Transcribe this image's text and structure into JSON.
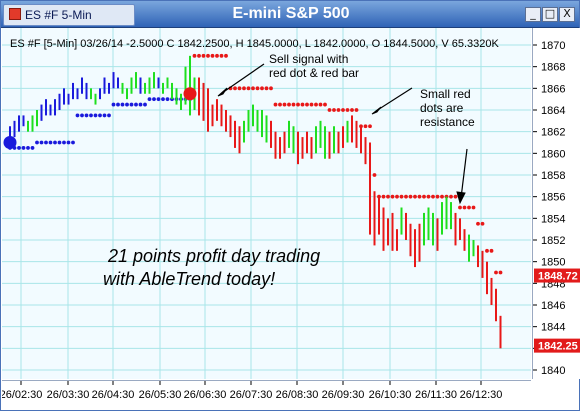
{
  "window": {
    "tab_label": "ES #F 5-Min",
    "title": "E-mini S&P 500",
    "buttons": [
      "_",
      "□",
      "X"
    ]
  },
  "info_line": "ES #F [5-Min] 03/26/14  -2.5000 C 1842.2500, H 1845.0000, L 1842.0000, O 1844.5000, V 65.3320K",
  "annotations": {
    "sell_signal": [
      "Sell signal with",
      "red dot & red bar"
    ],
    "resistance": [
      "Small red",
      "dots are",
      "resistance"
    ],
    "profit": [
      "21 points profit day trading",
      "with AbleTrend today!"
    ]
  },
  "price_tags": {
    "upper": "1848.72",
    "last": "1842.25"
  },
  "colors": {
    "up": "#1fdf1f",
    "down": "#e81818",
    "neutral": "#1a1adc",
    "stop_dot": "#e81818",
    "support_dot": "#1a1adc",
    "grid": "#a8e6e8"
  },
  "chart_data": {
    "type": "bar",
    "subtype": "OHLC price bars with AbleTrend stop dots",
    "ylim": [
      1840,
      1871
    ],
    "y_ticks": [
      1840,
      1842,
      1844,
      1846,
      1848,
      1850,
      1852,
      1854,
      1856,
      1858,
      1860,
      1862,
      1864,
      1866,
      1868,
      1870
    ],
    "x_ticks": [
      "26/02:30",
      "26/03:30",
      "26/04:30",
      "26/05:30",
      "26/06:30",
      "26/07:30",
      "26/08:30",
      "26/09:30",
      "26/10:30",
      "26/11:30",
      "26/12:30"
    ],
    "grid": true,
    "bars": [
      {
        "h": 1862.5,
        "l": 1861.0,
        "c": "neutral"
      },
      {
        "h": 1863.0,
        "l": 1861.5,
        "c": "neutral"
      },
      {
        "h": 1863.5,
        "l": 1862.0,
        "c": "neutral"
      },
      {
        "h": 1863.5,
        "l": 1862.5,
        "c": "neutral"
      },
      {
        "h": 1863.0,
        "l": 1862.0,
        "c": "up"
      },
      {
        "h": 1863.5,
        "l": 1862.0,
        "c": "up"
      },
      {
        "h": 1864.0,
        "l": 1862.5,
        "c": "up"
      },
      {
        "h": 1864.5,
        "l": 1863.0,
        "c": "neutral"
      },
      {
        "h": 1865.0,
        "l": 1863.5,
        "c": "neutral"
      },
      {
        "h": 1864.5,
        "l": 1863.5,
        "c": "neutral"
      },
      {
        "h": 1865.0,
        "l": 1863.5,
        "c": "neutral"
      },
      {
        "h": 1865.5,
        "l": 1864.0,
        "c": "neutral"
      },
      {
        "h": 1866.0,
        "l": 1864.5,
        "c": "neutral"
      },
      {
        "h": 1865.5,
        "l": 1864.5,
        "c": "neutral"
      },
      {
        "h": 1866.5,
        "l": 1865.0,
        "c": "neutral"
      },
      {
        "h": 1866.0,
        "l": 1865.0,
        "c": "neutral"
      },
      {
        "h": 1867.0,
        "l": 1865.5,
        "c": "neutral"
      },
      {
        "h": 1866.5,
        "l": 1865.0,
        "c": "neutral"
      },
      {
        "h": 1866.0,
        "l": 1865.0,
        "c": "up"
      },
      {
        "h": 1865.5,
        "l": 1864.5,
        "c": "up"
      },
      {
        "h": 1866.0,
        "l": 1865.0,
        "c": "neutral"
      },
      {
        "h": 1867.0,
        "l": 1865.5,
        "c": "neutral"
      },
      {
        "h": 1866.5,
        "l": 1865.5,
        "c": "neutral"
      },
      {
        "h": 1867.5,
        "l": 1866.0,
        "c": "neutral"
      },
      {
        "h": 1867.0,
        "l": 1866.0,
        "c": "neutral"
      },
      {
        "h": 1866.5,
        "l": 1865.5,
        "c": "up"
      },
      {
        "h": 1866.0,
        "l": 1865.0,
        "c": "up"
      },
      {
        "h": 1867.0,
        "l": 1865.5,
        "c": "up"
      },
      {
        "h": 1867.5,
        "l": 1866.0,
        "c": "up"
      },
      {
        "h": 1867.0,
        "l": 1865.5,
        "c": "neutral"
      },
      {
        "h": 1866.5,
        "l": 1865.5,
        "c": "up"
      },
      {
        "h": 1867.0,
        "l": 1865.5,
        "c": "up"
      },
      {
        "h": 1867.5,
        "l": 1866.0,
        "c": "up"
      },
      {
        "h": 1867.0,
        "l": 1866.0,
        "c": "neutral"
      },
      {
        "h": 1866.5,
        "l": 1865.5,
        "c": "up"
      },
      {
        "h": 1867.0,
        "l": 1866.0,
        "c": "up"
      },
      {
        "h": 1866.5,
        "l": 1865.0,
        "c": "up"
      },
      {
        "h": 1866.0,
        "l": 1864.5,
        "c": "up"
      },
      {
        "h": 1865.5,
        "l": 1864.0,
        "c": "up"
      },
      {
        "h": 1868.0,
        "l": 1864.5,
        "c": "up"
      },
      {
        "h": 1869.0,
        "l": 1863.5,
        "c": "up"
      },
      {
        "h": 1867.0,
        "l": 1864.0,
        "c": "up"
      },
      {
        "h": 1867.0,
        "l": 1863.5,
        "c": "down"
      },
      {
        "h": 1866.5,
        "l": 1863.0,
        "c": "down"
      },
      {
        "h": 1866.0,
        "l": 1862.0,
        "c": "down"
      },
      {
        "h": 1864.5,
        "l": 1862.5,
        "c": "down"
      },
      {
        "h": 1865.0,
        "l": 1863.0,
        "c": "down"
      },
      {
        "h": 1864.5,
        "l": 1862.5,
        "c": "down"
      },
      {
        "h": 1864.0,
        "l": 1862.0,
        "c": "down"
      },
      {
        "h": 1863.5,
        "l": 1861.5,
        "c": "down"
      },
      {
        "h": 1863.0,
        "l": 1860.5,
        "c": "down"
      },
      {
        "h": 1862.5,
        "l": 1860.0,
        "c": "down"
      },
      {
        "h": 1863.0,
        "l": 1861.0,
        "c": "up"
      },
      {
        "h": 1864.0,
        "l": 1862.0,
        "c": "up"
      },
      {
        "h": 1864.5,
        "l": 1862.5,
        "c": "up"
      },
      {
        "h": 1864.0,
        "l": 1862.0,
        "c": "up"
      },
      {
        "h": 1864.0,
        "l": 1861.5,
        "c": "up"
      },
      {
        "h": 1863.5,
        "l": 1861.0,
        "c": "up"
      },
      {
        "h": 1863.0,
        "l": 1860.5,
        "c": "down"
      },
      {
        "h": 1862.0,
        "l": 1859.5,
        "c": "down"
      },
      {
        "h": 1861.5,
        "l": 1859.5,
        "c": "down"
      },
      {
        "h": 1862.0,
        "l": 1860.0,
        "c": "down"
      },
      {
        "h": 1863.0,
        "l": 1860.5,
        "c": "up"
      },
      {
        "h": 1862.5,
        "l": 1860.0,
        "c": "up"
      },
      {
        "h": 1862.0,
        "l": 1859.0,
        "c": "down"
      },
      {
        "h": 1861.5,
        "l": 1859.5,
        "c": "down"
      },
      {
        "h": 1862.0,
        "l": 1860.0,
        "c": "down"
      },
      {
        "h": 1861.5,
        "l": 1859.5,
        "c": "down"
      },
      {
        "h": 1862.5,
        "l": 1860.0,
        "c": "up"
      },
      {
        "h": 1863.0,
        "l": 1860.5,
        "c": "up"
      },
      {
        "h": 1862.5,
        "l": 1859.5,
        "c": "up"
      },
      {
        "h": 1862.0,
        "l": 1859.5,
        "c": "down"
      },
      {
        "h": 1862.5,
        "l": 1860.0,
        "c": "up"
      },
      {
        "h": 1862.0,
        "l": 1860.0,
        "c": "down"
      },
      {
        "h": 1862.5,
        "l": 1860.5,
        "c": "down"
      },
      {
        "h": 1863.0,
        "l": 1861.0,
        "c": "up"
      },
      {
        "h": 1863.5,
        "l": 1861.0,
        "c": "down"
      },
      {
        "h": 1863.0,
        "l": 1860.5,
        "c": "down"
      },
      {
        "h": 1862.5,
        "l": 1860.0,
        "c": "down"
      },
      {
        "h": 1861.5,
        "l": 1859.0,
        "c": "down"
      },
      {
        "h": 1861.0,
        "l": 1852.5,
        "c": "down"
      },
      {
        "h": 1856.5,
        "l": 1851.5,
        "c": "down"
      },
      {
        "h": 1856.0,
        "l": 1852.5,
        "c": "down"
      },
      {
        "h": 1855.0,
        "l": 1851.0,
        "c": "down"
      },
      {
        "h": 1854.0,
        "l": 1851.5,
        "c": "down"
      },
      {
        "h": 1854.5,
        "l": 1851.0,
        "c": "down"
      },
      {
        "h": 1853.0,
        "l": 1851.0,
        "c": "down"
      },
      {
        "h": 1855.0,
        "l": 1852.5,
        "c": "up"
      },
      {
        "h": 1854.5,
        "l": 1852.0,
        "c": "down"
      },
      {
        "h": 1853.5,
        "l": 1850.5,
        "c": "down"
      },
      {
        "h": 1853.0,
        "l": 1849.5,
        "c": "down"
      },
      {
        "h": 1853.5,
        "l": 1850.0,
        "c": "down"
      },
      {
        "h": 1854.5,
        "l": 1851.5,
        "c": "up"
      },
      {
        "h": 1855.0,
        "l": 1852.0,
        "c": "up"
      },
      {
        "h": 1854.5,
        "l": 1851.5,
        "c": "up"
      },
      {
        "h": 1854.0,
        "l": 1851.0,
        "c": "down"
      },
      {
        "h": 1855.5,
        "l": 1852.5,
        "c": "up"
      },
      {
        "h": 1856.0,
        "l": 1853.0,
        "c": "up"
      },
      {
        "h": 1855.5,
        "l": 1853.0,
        "c": "up"
      },
      {
        "h": 1854.5,
        "l": 1851.5,
        "c": "down"
      },
      {
        "h": 1854.0,
        "l": 1852.0,
        "c": "down"
      },
      {
        "h": 1853.0,
        "l": 1851.0,
        "c": "down"
      },
      {
        "h": 1852.5,
        "l": 1850.0,
        "c": "up"
      },
      {
        "h": 1852.0,
        "l": 1850.5,
        "c": "up"
      },
      {
        "h": 1851.5,
        "l": 1849.5,
        "c": "down"
      },
      {
        "h": 1851.0,
        "l": 1848.5,
        "c": "down"
      },
      {
        "h": 1850.0,
        "l": 1847.0,
        "c": "down"
      },
      {
        "h": 1848.5,
        "l": 1846.0,
        "c": "down"
      },
      {
        "h": 1847.5,
        "l": 1844.5,
        "c": "down"
      },
      {
        "h": 1845.0,
        "l": 1842.0,
        "c": "down"
      }
    ],
    "support_dots": [
      {
        "from": 0,
        "to": 5,
        "y": 1860.5
      },
      {
        "from": 6,
        "to": 14,
        "y": 1861.0
      },
      {
        "from": 15,
        "to": 22,
        "y": 1863.5
      },
      {
        "from": 23,
        "to": 30,
        "y": 1864.5
      },
      {
        "from": 31,
        "to": 40,
        "y": 1865.0
      }
    ],
    "stop_dots": [
      {
        "from": 41,
        "to": 48,
        "y": 1869.0
      },
      {
        "from": 49,
        "to": 58,
        "y": 1866.0
      },
      {
        "from": 59,
        "to": 70,
        "y": 1864.5
      },
      {
        "from": 71,
        "to": 77,
        "y": 1864.0
      },
      {
        "from": 78,
        "to": 80,
        "y": 1862.5
      },
      {
        "from": 81,
        "to": 81,
        "y": 1858.0
      },
      {
        "from": 82,
        "to": 90,
        "y": 1856.0
      },
      {
        "from": 91,
        "to": 99,
        "y": 1856.0
      },
      {
        "from": 100,
        "to": 103,
        "y": 1855.0
      },
      {
        "from": 104,
        "to": 105,
        "y": 1853.5
      },
      {
        "from": 106,
        "to": 107,
        "y": 1851.0
      },
      {
        "from": 108,
        "to": 109,
        "y": 1849.0
      }
    ],
    "big_dots": [
      {
        "i": 0,
        "y": 1861.0,
        "c": "neutral"
      },
      {
        "i": 40,
        "y": 1865.5,
        "c": "down"
      }
    ]
  }
}
